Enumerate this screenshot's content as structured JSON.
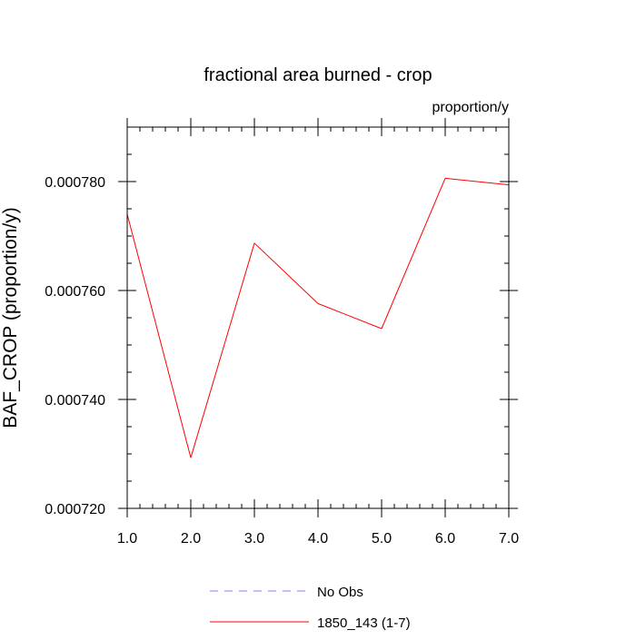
{
  "chart_data": {
    "type": "line",
    "title": "fractional area burned - crop",
    "units_label": "proportion/y",
    "ylabel": "BAF_CROP  (proportion/y)",
    "xlabel": "",
    "xlim": [
      1.0,
      7.0
    ],
    "ylim": [
      0.00072,
      0.00079
    ],
    "x_ticks": [
      1.0,
      2.0,
      3.0,
      4.0,
      5.0,
      6.0,
      7.0
    ],
    "x_tick_labels": [
      "1.0",
      "2.0",
      "3.0",
      "4.0",
      "5.0",
      "6.0",
      "7.0"
    ],
    "y_ticks": [
      0.00072,
      0.00074,
      0.00076,
      0.00078
    ],
    "y_tick_labels": [
      "0.000720",
      "0.000740",
      "0.000760",
      "0.000780"
    ],
    "y_minor_step": 5e-06,
    "x_minor_step": 0.2,
    "grid": false,
    "legend_position": "bottom-center",
    "series": [
      {
        "name": "1850_143 (1-7)",
        "color": "#ff0000",
        "dash": "solid",
        "x": [
          1.0,
          2.0,
          3.0,
          4.0,
          5.0,
          6.0,
          7.0
        ],
        "values": [
          0.000774,
          0.0007293,
          0.0007687,
          0.0007576,
          0.000753,
          0.0007806,
          0.0007794
        ]
      }
    ],
    "legend": [
      {
        "label": "No Obs",
        "color": "#8080ff",
        "dash": "dashed"
      },
      {
        "label": "1850_143 (1-7)",
        "color": "#ff0000",
        "dash": "solid"
      }
    ]
  }
}
